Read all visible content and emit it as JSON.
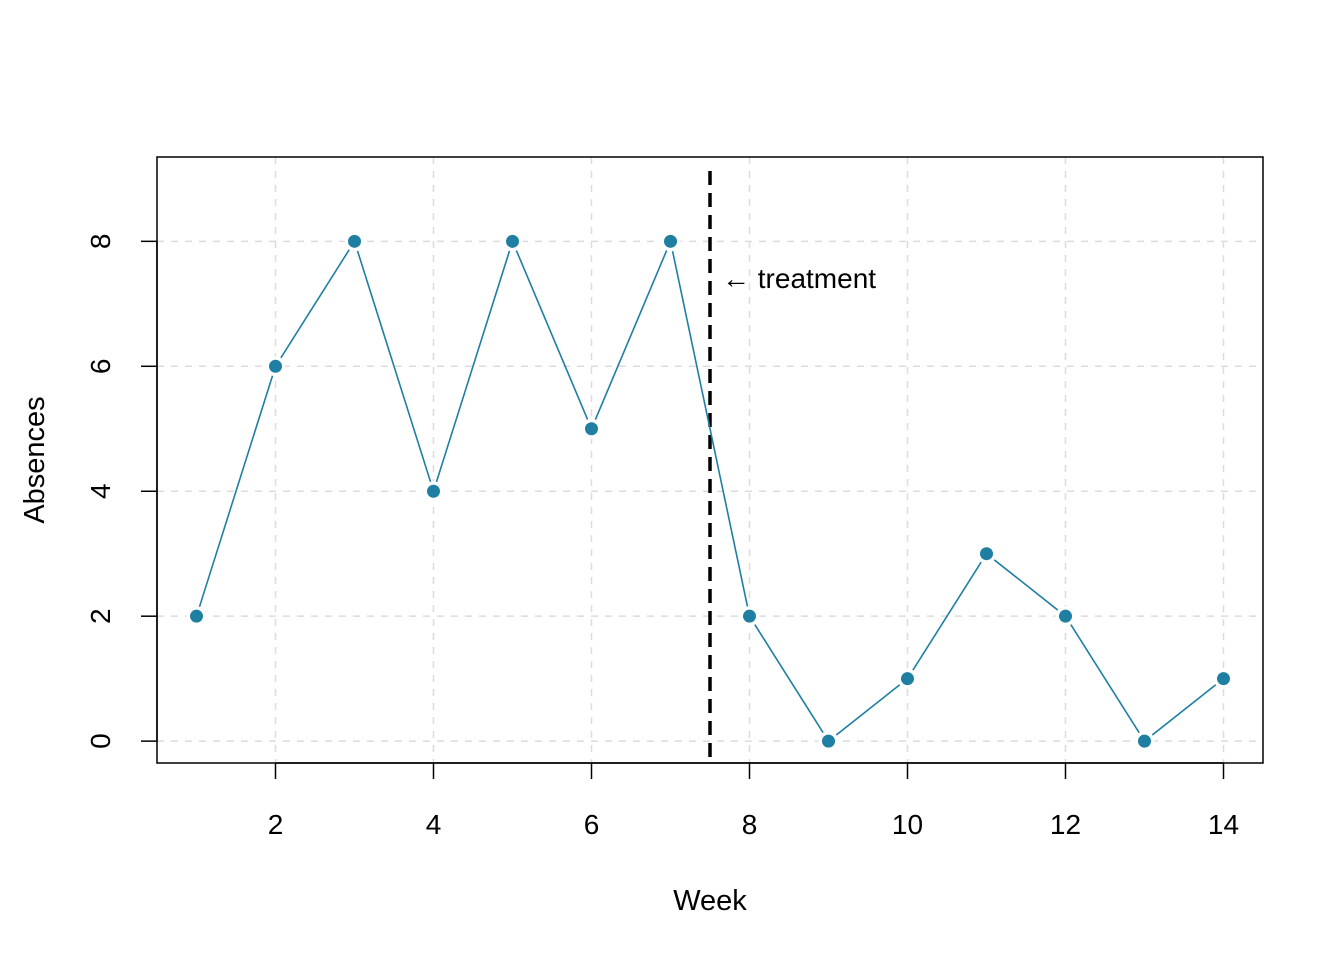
{
  "chart_data": {
    "type": "line",
    "title": "",
    "xlabel": "Week",
    "ylabel": "Absences",
    "xlim": [
      0.5,
      14.5
    ],
    "ylim": [
      -0.35,
      9.35
    ],
    "xticks": [
      2,
      4,
      6,
      8,
      10,
      12,
      14
    ],
    "yticks": [
      0,
      2,
      4,
      6,
      8
    ],
    "grid": true,
    "series": [
      {
        "x": [
          1,
          2,
          3,
          4,
          5,
          6,
          7,
          8,
          9,
          10,
          11,
          12,
          13,
          14
        ],
        "y": [
          2,
          6,
          8,
          4,
          8,
          5,
          8,
          2,
          0,
          1,
          3,
          2,
          0,
          1
        ]
      }
    ],
    "vline": {
      "x": 7.5,
      "style": "dashed"
    },
    "annotation": {
      "text": "← treatment",
      "x": 7.5,
      "y": 7.4
    },
    "colors": {
      "series": "#1f7fa3",
      "grid": "#dcdcdc",
      "vline": "#000000"
    }
  }
}
